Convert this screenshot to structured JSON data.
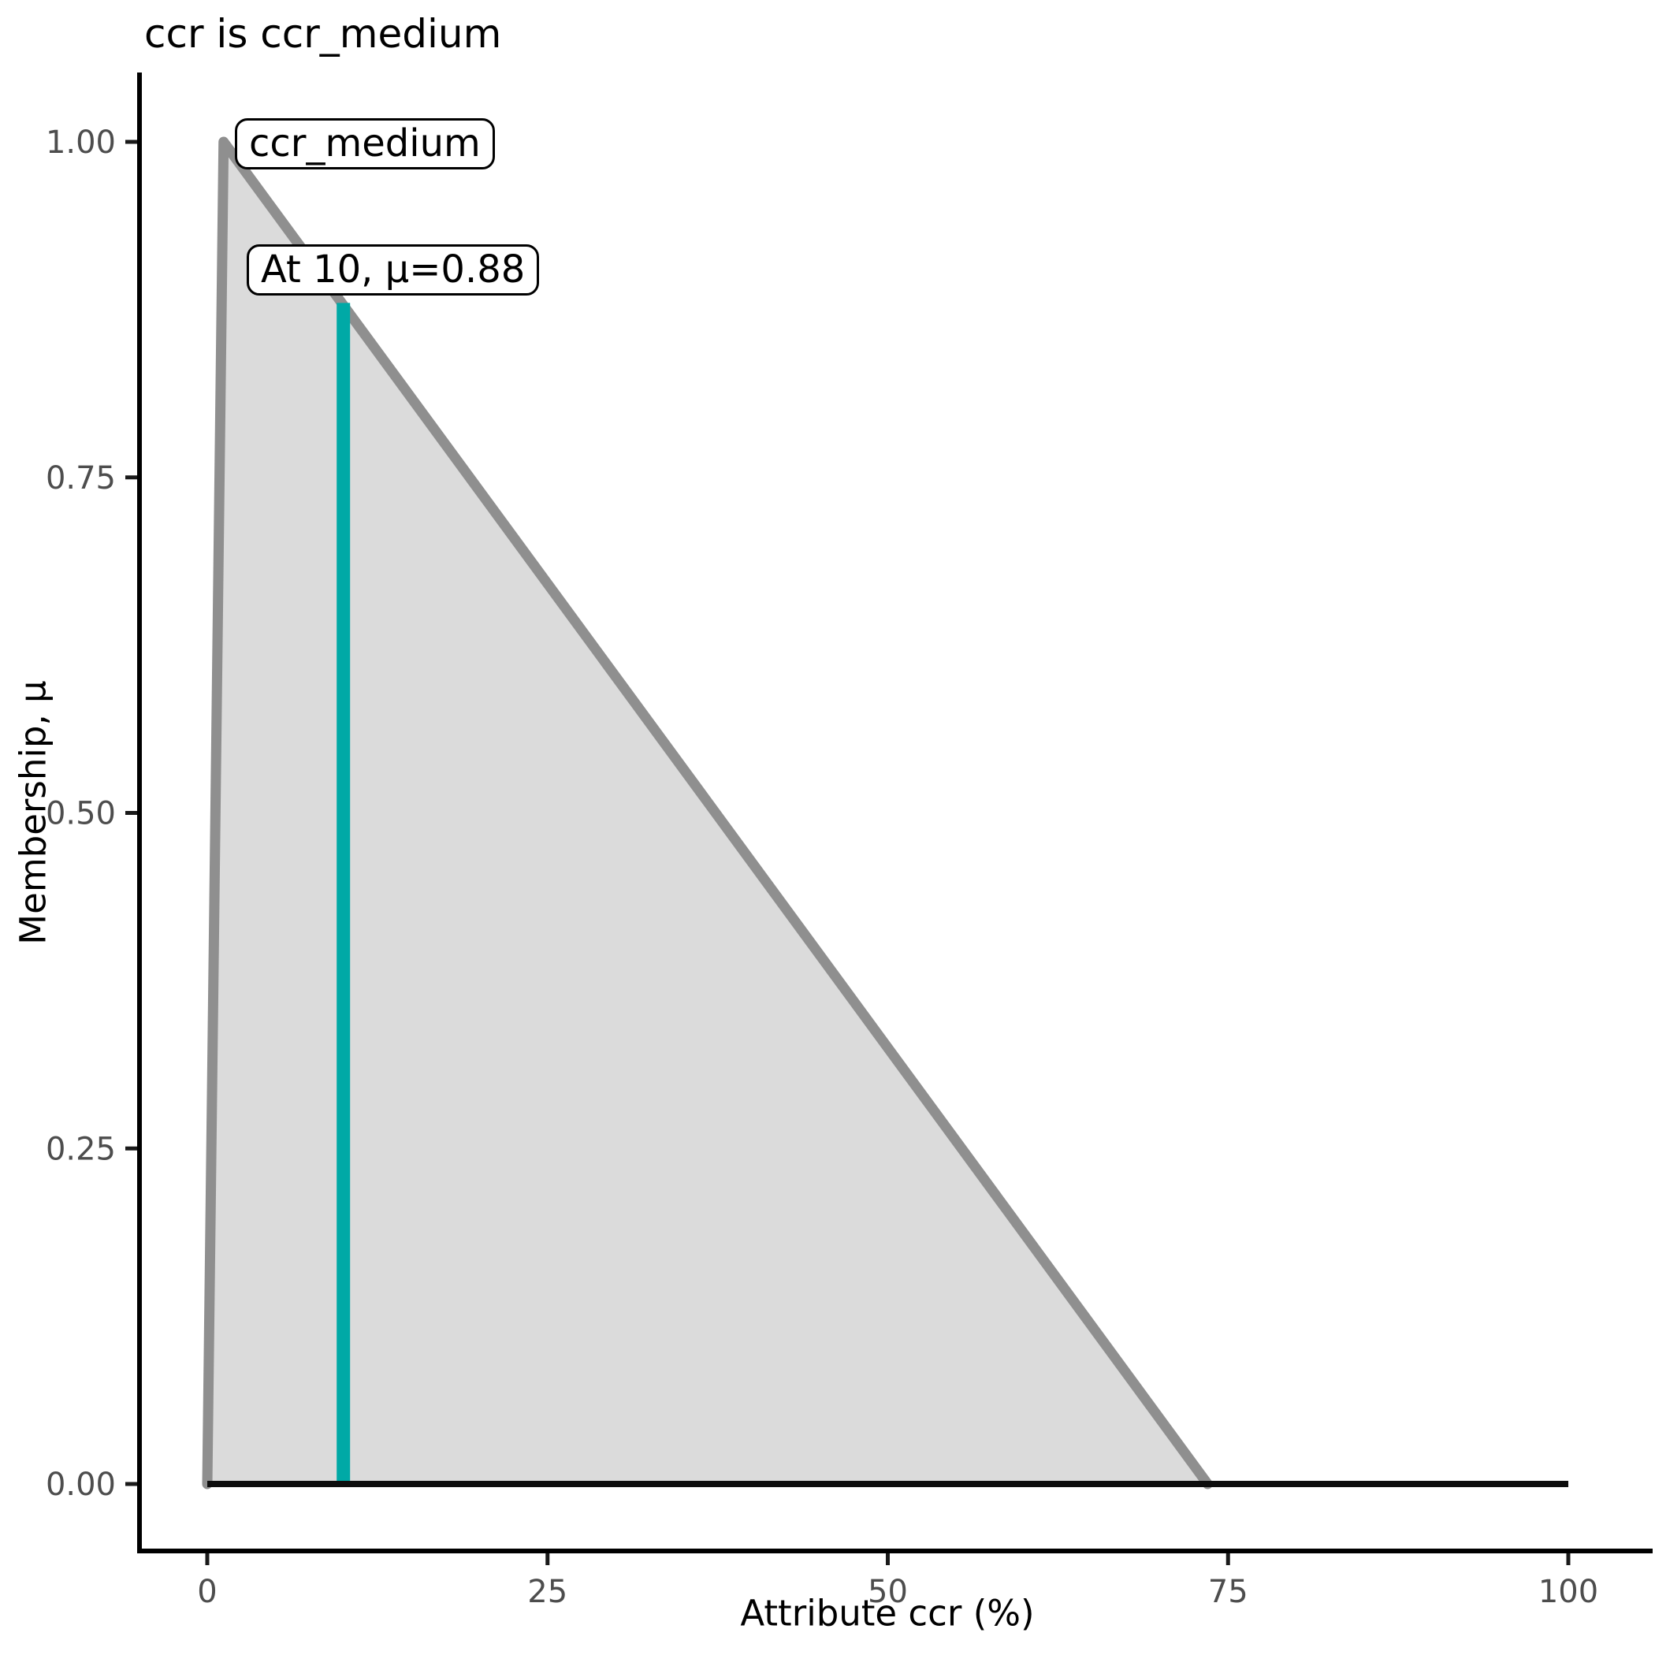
{
  "chart_data": {
    "type": "area",
    "title": "ccr is ccr_medium",
    "xlabel": "Attribute ccr (%)",
    "ylabel": "Membership, μ",
    "xlim": [
      0,
      100
    ],
    "ylim": [
      0,
      1
    ],
    "grid": false,
    "legend": "none",
    "x_ticks": {
      "values": [
        0,
        25,
        50,
        75,
        100
      ],
      "labels": [
        "0",
        "25",
        "50",
        "75",
        "100"
      ]
    },
    "y_ticks": {
      "values": [
        0,
        0.25,
        0.5,
        0.75,
        1
      ],
      "labels": [
        "0.00",
        "0.25",
        "0.50",
        "0.75",
        "1.00"
      ]
    },
    "series": [
      {
        "name": "ccr_medium",
        "kind": "triangular-membership-function",
        "points": [
          [
            0,
            0
          ],
          [
            1.2,
            1.0
          ],
          [
            73.5,
            0
          ]
        ]
      }
    ],
    "evaluation": {
      "x": 10,
      "mu": 0.88
    },
    "baseline": {
      "y": 0,
      "x_from": 0,
      "x_to": 100
    },
    "annotations": [
      {
        "id": "set-label",
        "text": "ccr_medium"
      },
      {
        "id": "evaluation-label",
        "text": "At 10, μ=0.88"
      }
    ],
    "colors": {
      "fill": "#DBDBDB",
      "curve": "#8F8F8F",
      "evaluation_line": "#00A9A6",
      "baseline": "#0D0D0D",
      "axis": "#000000",
      "tick_mark": "#1A1A1A",
      "tick_text": "#4D4D4D",
      "title_text": "#000000"
    }
  }
}
